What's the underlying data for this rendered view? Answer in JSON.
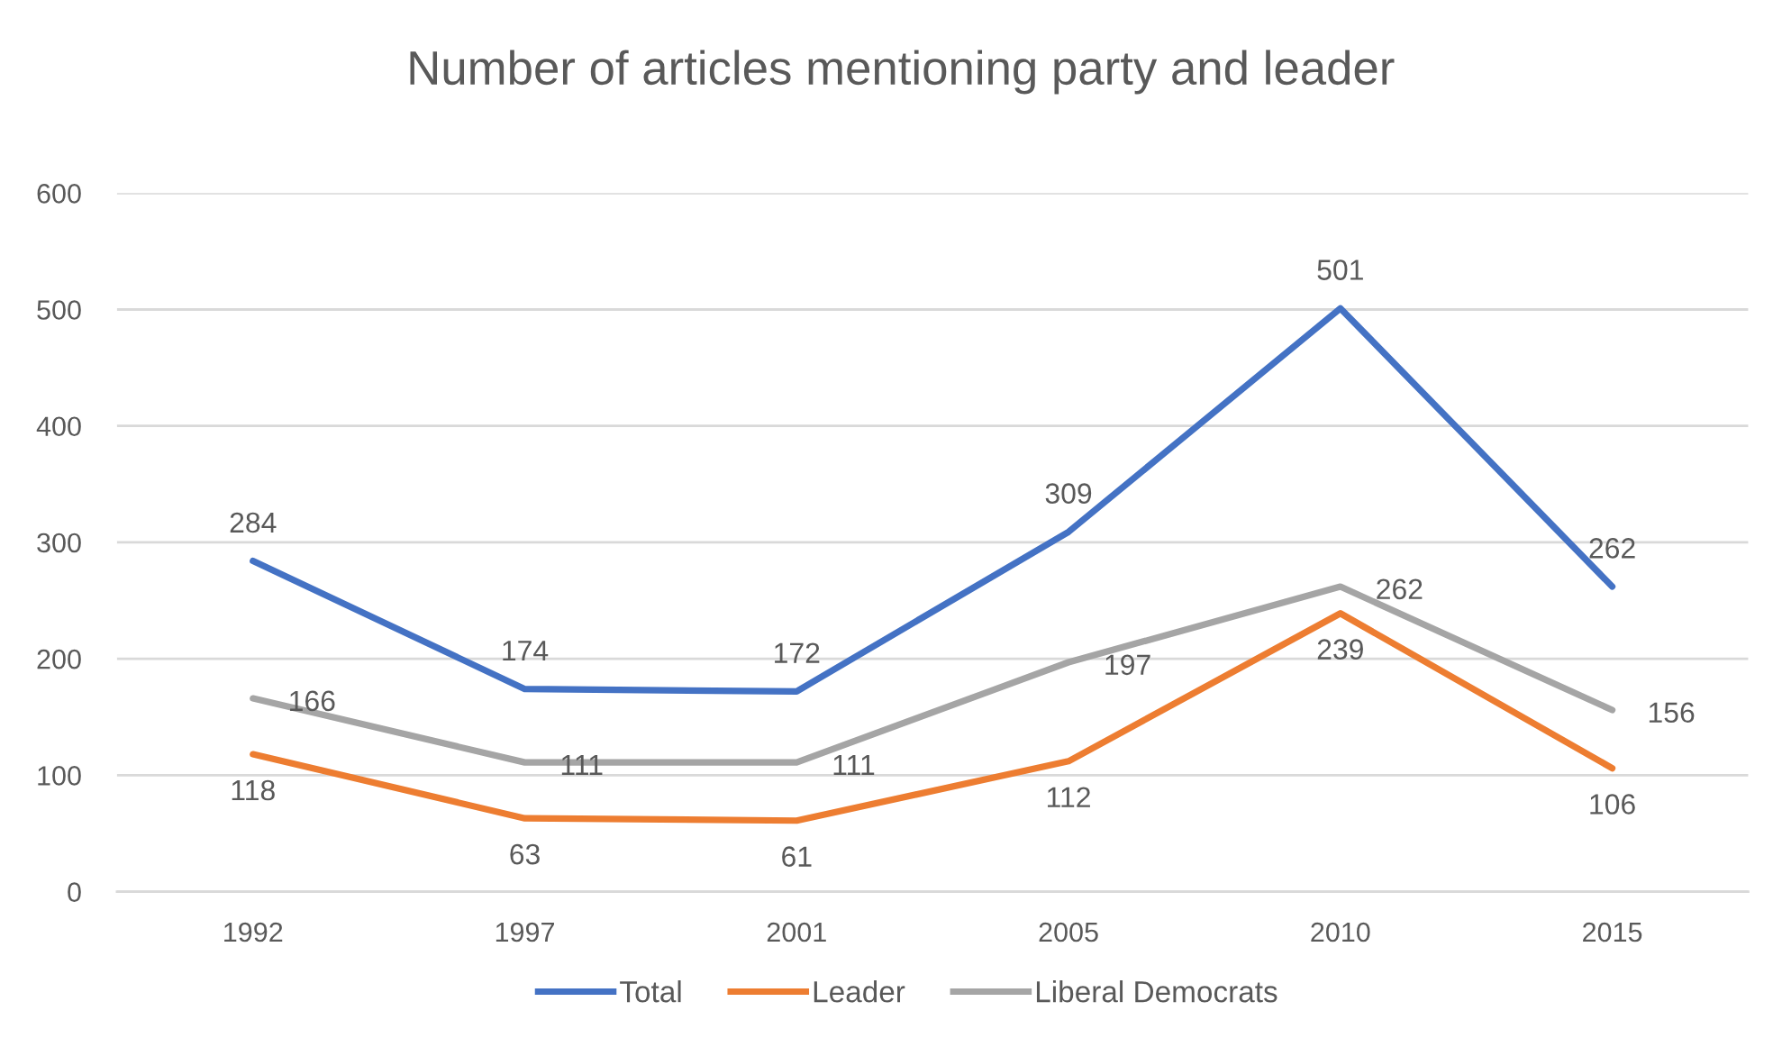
{
  "chart_data": {
    "type": "line",
    "title": "Number of articles mentioning party and leader",
    "categories": [
      "1992",
      "1997",
      "2001",
      "2005",
      "2010",
      "2015"
    ],
    "series": [
      {
        "name": "Total",
        "color": "#4472c4",
        "values": [
          284,
          174,
          172,
          309,
          501,
          262
        ]
      },
      {
        "name": "Leader",
        "color": "#ed7d31",
        "values": [
          118,
          63,
          61,
          112,
          239,
          106
        ]
      },
      {
        "name": "Liberal Democrats",
        "color": "#a5a5a5",
        "values": [
          166,
          111,
          111,
          197,
          262,
          156
        ]
      }
    ],
    "ylim": [
      0,
      600
    ],
    "yticks": [
      0,
      100,
      200,
      300,
      400,
      500,
      600
    ],
    "grid": "y",
    "legend": "bottom",
    "data_labels": true,
    "line_style": "solid"
  }
}
